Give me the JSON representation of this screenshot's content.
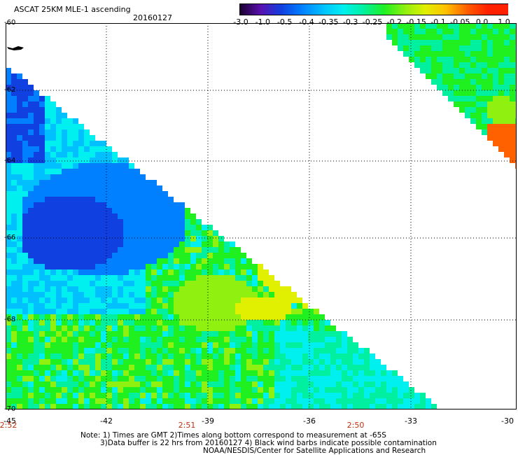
{
  "header": {
    "title": "ASCAT 25KM MLE-1 ascending",
    "date": "20160127"
  },
  "colorbar": {
    "labels": [
      "-3.0",
      "-1.0",
      "-0.5",
      "-0.4",
      "-0.35",
      "-0.3",
      "-0.25",
      "-0.2",
      "-0.15",
      "-0.1",
      "-0.05",
      "0.0",
      "1.0"
    ],
    "colors": [
      "#1a0030",
      "#5a10b0",
      "#1040e0",
      "#0080ff",
      "#00c0ff",
      "#00f0f0",
      "#00f0a0",
      "#20f020",
      "#90f010",
      "#e0f000",
      "#ffc000",
      "#ff6000",
      "#ff2000"
    ]
  },
  "map": {
    "lat_labels": [
      "-60",
      "-62",
      "-64",
      "-66",
      "-68",
      "-70"
    ],
    "lon_labels": [
      "-45",
      "-42",
      "-39",
      "-36",
      "-33",
      "-30"
    ],
    "times": [
      "2:52",
      "2:51",
      "2:50"
    ],
    "land_color": "#000000",
    "missing_color": "#ffffff"
  },
  "notes": {
    "line1": "Note: 1) Times are GMT 2)Times along bottom correspond to measurement at -65S",
    "line2": "3)Data buffer is 22 hrs from 20160127 4) Black wind barbs indicate possible contamination",
    "line3": "NOAA/NESDIS/Center for Satellite Applications and Research"
  }
}
